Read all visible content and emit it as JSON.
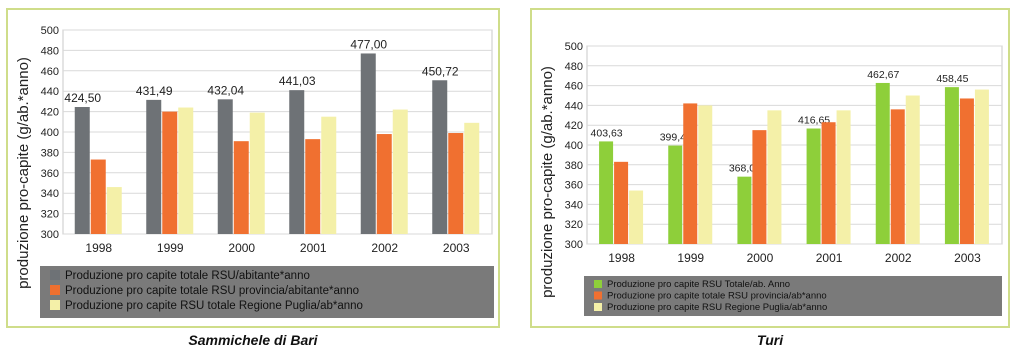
{
  "chart_data": [
    {
      "type": "bar",
      "title": "",
      "xlabel": "",
      "ylabel": "produzione pro-capite (g/ab.*anno)",
      "ylim": [
        300,
        500
      ],
      "yticks": [
        300,
        320,
        340,
        360,
        380,
        400,
        420,
        440,
        460,
        480,
        500
      ],
      "grid": true,
      "legend_position": "bottom",
      "categories": [
        "1998",
        "1999",
        "2000",
        "2001",
        "2002",
        "2003"
      ],
      "series": [
        {
          "name": "Produzione pro capite totale RSU/abitante*anno",
          "color": "#6e7276",
          "values": [
            424.5,
            431.49,
            432.04,
            441.03,
            477.0,
            450.72
          ],
          "labels": [
            "424,50",
            "431,49",
            "432,04",
            "441,03",
            "477,00",
            "450,72"
          ]
        },
        {
          "name": "Produzione pro capite totale RSU provincia/abitante*anno",
          "color": "#f07030",
          "values": [
            373,
            420,
            391,
            393,
            398,
            399
          ]
        },
        {
          "name": "Produzione pro capite RSU totale Regione Puglia/ab*anno",
          "color": "#f4f0a8",
          "values": [
            346,
            424,
            419,
            415,
            422,
            409
          ]
        }
      ]
    },
    {
      "type": "bar",
      "title": "",
      "xlabel": "",
      "ylabel": "produzione pro-capite (g/ab.*anno)",
      "ylim": [
        300,
        500
      ],
      "yticks": [
        300,
        320,
        340,
        360,
        380,
        400,
        420,
        440,
        460,
        480,
        500
      ],
      "grid": true,
      "legend_position": "bottom",
      "categories": [
        "1998",
        "1999",
        "2000",
        "2001",
        "2002",
        "2003"
      ],
      "series": [
        {
          "name": "Produzione pro capite RSU Totale/ab. Anno",
          "color": "#8ecf3a",
          "values": [
            403.63,
            399.41,
            368.02,
            416.65,
            462.67,
            458.45
          ],
          "labels": [
            "403,63",
            "399,41",
            "368,02",
            "416,65",
            "462,67",
            "458,45"
          ]
        },
        {
          "name": "Produzione pro capite totale RSU provincia/ab*anno",
          "color": "#f07030",
          "values": [
            383,
            442,
            415,
            423,
            436,
            447
          ]
        },
        {
          "name": "Produzione pro capite RSU Regione Puglia/ab*anno",
          "color": "#f4f0a8",
          "values": [
            354,
            440,
            435,
            435,
            450,
            456
          ]
        }
      ]
    }
  ],
  "captions": {
    "left": "Sammichele di Bari",
    "right": "Turi"
  },
  "colors": {
    "panel_border": "#cfdd8a",
    "legend_bg": "#7a7a7a",
    "grid": "#d9d9d9"
  }
}
